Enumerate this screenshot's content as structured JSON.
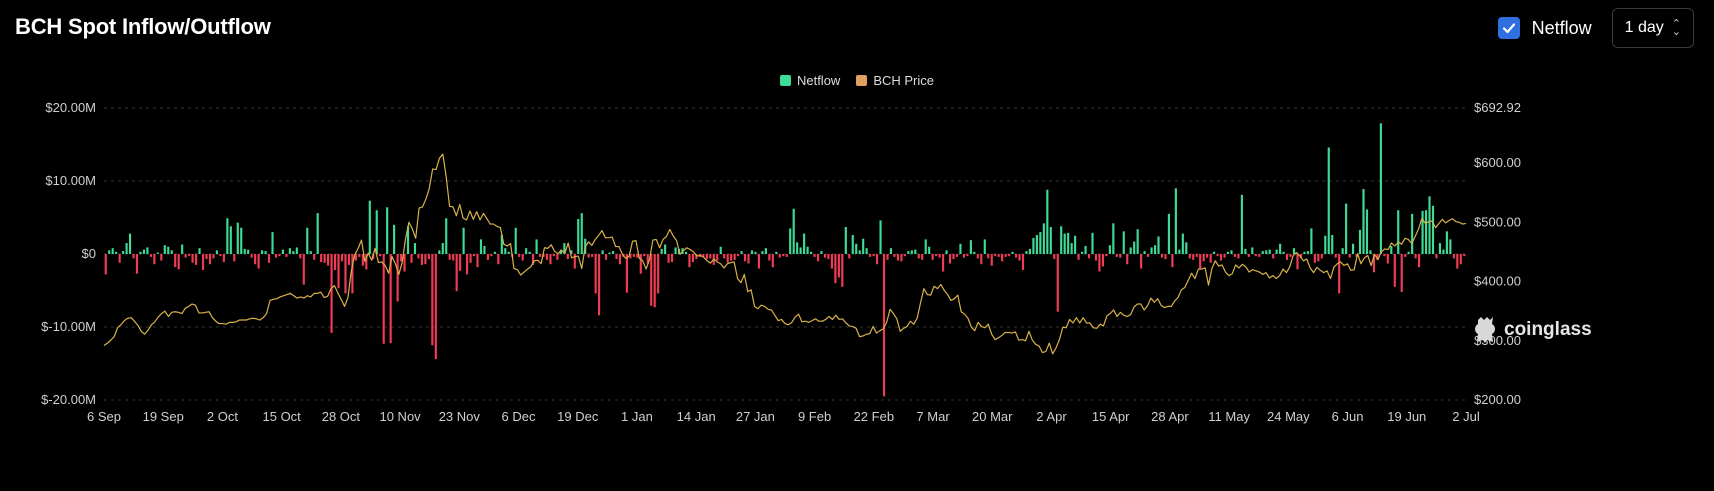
{
  "header": {
    "title": "BCH Spot Inflow/Outflow",
    "netflow_toggle_label": "Netflow",
    "netflow_checked": true,
    "interval_select": "1 day"
  },
  "legend": [
    {
      "name": "Netflow",
      "color": "#3ddc97"
    },
    {
      "name": "BCH Price",
      "color": "#e0a060"
    }
  ],
  "watermark": "coinglass",
  "colors": {
    "positive": "#3ddc97",
    "negative": "#f23c55",
    "price_line": "#d8b24a",
    "grid": "#333333"
  },
  "chart_data": {
    "type": "bar",
    "title": "BCH Spot Inflow/Outflow",
    "grid": true,
    "legend_position": "top-center",
    "x_ticks": [
      "6 Sep",
      "19 Sep",
      "2 Oct",
      "15 Oct",
      "28 Oct",
      "10 Nov",
      "23 Nov",
      "6 Dec",
      "19 Dec",
      "1 Jan",
      "14 Jan",
      "27 Jan",
      "9 Feb",
      "22 Feb",
      "7 Mar",
      "20 Mar",
      "2 Apr",
      "15 Apr",
      "28 Apr",
      "11 May",
      "24 May",
      "6 Jun",
      "19 Jun",
      "2 Jul"
    ],
    "left_axis": {
      "ylim": [
        -20,
        20
      ],
      "unit": "$M",
      "ticks": [
        "$20.00M",
        "$10.00M",
        "$0",
        "$-10.00M",
        "$-20.00M"
      ]
    },
    "right_axis": {
      "ylim": [
        200,
        692.92
      ],
      "ticks": [
        "$692.92",
        "$600.00",
        "$500.00",
        "$400.00",
        "$300.00",
        "$200.00"
      ]
    },
    "series": [
      {
        "name": "Netflow",
        "axis": "left",
        "unit": "$M",
        "values": [
          -2.8,
          0.5,
          0.8,
          0.3,
          -1.2,
          0.4,
          1.5,
          2.8,
          -0.6,
          -2.7,
          0.3,
          0.6,
          0.9,
          -0.4,
          -1.4,
          0.2,
          -0.9,
          1.2,
          1.0,
          0.5,
          -1.8,
          -2.1,
          1.3,
          -0.5,
          -0.3,
          -1.2,
          -1.5,
          0.8,
          -2.2,
          -0.7,
          -1.4,
          -0.6,
          0.5,
          -0.3,
          -1.1,
          4.9,
          3.8,
          -1.0,
          4.3,
          3.6,
          0.7,
          0.6,
          -0.5,
          -1.4,
          -2.0,
          0.5,
          0.4,
          -1.2,
          3.0,
          -0.5,
          -0.3,
          0.6,
          -0.4,
          0.8,
          0.4,
          0.9,
          -0.6,
          -4.2,
          3.6,
          0.4,
          -0.8,
          5.6,
          -1.1,
          -1.2,
          -1.6,
          -10.8,
          -2.2,
          -4.7,
          -1.0,
          -5.4,
          -1.5,
          -5.4,
          -0.9,
          -0.4,
          -1.6,
          -2.1,
          7.3,
          -0.7,
          6.0,
          -0.3,
          -12.3,
          6.4,
          -12.2,
          4.0,
          -6.5,
          -1.0,
          -2.4,
          3.8,
          -1.2,
          1.5,
          -0.6,
          -1.5,
          -1.4,
          -0.7,
          -12.5,
          -14.4,
          0.5,
          1.5,
          4.9,
          -0.8,
          -0.9,
          -5.1,
          -2.3,
          3.6,
          -2.8,
          -1.2,
          -0.3,
          -1.8,
          2.0,
          1.1,
          -0.8,
          -0.3,
          0.3,
          -1.4,
          2.6,
          0.8,
          0.3,
          -0.4,
          3.6,
          -0.4,
          -0.9,
          0.8,
          0.3,
          -1.5,
          2.0,
          -0.4,
          -0.4,
          -0.8,
          -1.4,
          -0.3,
          -0.8,
          0.6,
          1.5,
          -0.7,
          0.5,
          -2.0,
          4.8,
          5.6,
          2.1,
          -0.5,
          -0.4,
          -5.4,
          -8.4,
          0.5,
          -0.8,
          0.2,
          0.4,
          -0.7,
          -1.4,
          -0.4,
          -5.3,
          -0.6,
          -0.4,
          -0.5,
          -2.7,
          -0.3,
          -1.3,
          -7.1,
          -7.3,
          -5.4,
          0.7,
          1.3,
          -1.2,
          -1.1,
          0.9,
          0.7,
          0.8,
          0.3,
          -1.8,
          -1.1,
          -0.7,
          -0.4,
          -0.4,
          -0.7,
          -0.6,
          -1.5,
          -0.9,
          1.0,
          -0.6,
          -1.2,
          -0.9,
          -0.8,
          -0.3,
          0.4,
          -1.0,
          -1.3,
          0.5,
          0.3,
          -2.0,
          0.4,
          0.8,
          -0.9,
          -1.8,
          0.3,
          -0.5,
          -0.3,
          -0.4,
          3.5,
          6.2,
          1.6,
          0.9,
          2.8,
          1.0,
          0.3,
          -0.4,
          -1.0,
          0.4,
          -0.5,
          -0.7,
          -2.0,
          -4.0,
          -3.2,
          -4.5,
          3.7,
          -0.6,
          2.6,
          1.4,
          0.5,
          2.1,
          0.8,
          -0.4,
          -0.3,
          -1.4,
          4.6,
          -19.5,
          -0.8,
          0.8,
          -0.4,
          -0.9,
          -1.0,
          -0.3,
          0.4,
          0.5,
          0.6,
          -0.6,
          -0.8,
          2.0,
          1.0,
          -0.8,
          -0.3,
          -0.5,
          -2.4,
          0.5,
          -1.3,
          -0.7,
          -0.4,
          1.4,
          -0.5,
          -0.3,
          1.9,
          0.3,
          -0.6,
          -1.4,
          2.0,
          -0.6,
          -1.6,
          -0.3,
          -0.4,
          -1.0,
          -0.4,
          -0.3,
          0.3,
          -0.5,
          -0.9,
          -2.2,
          0.4,
          0.7,
          2.2,
          2.6,
          3.0,
          4.2,
          8.8,
          3.7,
          -0.7,
          -7.9,
          3.8,
          2.8,
          2.9,
          1.5,
          2.5,
          -0.8,
          0.3,
          1.1,
          -0.6,
          2.9,
          -0.9,
          -2.4,
          -1.7,
          -0.3,
          1.2,
          4.2,
          -0.4,
          -0.5,
          3.1,
          -1.4,
          0.9,
          1.7,
          3.4,
          -2.0,
          0.4,
          -0.4,
          0.9,
          1.2,
          2.4,
          -0.5,
          -0.7,
          5.5,
          -1.8,
          9.0,
          0.6,
          2.8,
          1.6,
          -0.6,
          -0.8,
          -0.4,
          -2.0,
          -1.0,
          -0.5,
          -1.2,
          0.3,
          -0.3,
          -0.9,
          -0.5,
          0.3,
          0.5,
          -0.4,
          -0.6,
          8.1,
          0.7,
          -0.4,
          0.9,
          -0.3,
          -0.4,
          0.4,
          0.5,
          0.6,
          -0.6,
          0.6,
          1.4,
          0.3,
          -0.8,
          -0.4,
          0.8,
          -2.1,
          -0.6,
          0.3,
          0.4,
          3.5,
          -1.2,
          -1.0,
          -0.6,
          2.5,
          14.6,
          2.6,
          -0.5,
          -5.4,
          0.8,
          6.9,
          -0.5,
          1.4,
          -0.4,
          3.3,
          8.9,
          6.1,
          0.5,
          -2.5,
          -0.8,
          17.9,
          -0.3,
          -1.3,
          1.1,
          -4.5,
          6.0,
          -5.2,
          -0.4,
          0.3,
          5.5,
          -0.6,
          -1.8,
          5.9,
          6.0,
          7.9,
          6.6,
          -0.6,
          1.5,
          0.6,
          3.1,
          2.0,
          -0.6,
          -2.0,
          -1.4,
          -0.3
        ]
      },
      {
        "name": "BCH Price",
        "axis": "right",
        "unit": "$",
        "values": [
          292,
          296,
          301,
          307,
          322,
          327,
          334,
          338,
          339,
          333,
          326,
          316,
          311,
          318,
          327,
          332,
          340,
          346,
          350,
          341,
          348,
          349,
          348,
          346,
          355,
          358,
          362,
          360,
          347,
          347,
          348,
          349,
          339,
          333,
          329,
          329,
          328,
          331,
          331,
          332,
          335,
          335,
          335,
          337,
          338,
          337,
          335,
          339,
          346,
          368,
          370,
          371,
          374,
          376,
          378,
          380,
          376,
          372,
          374,
          372,
          376,
          374,
          380,
          380,
          382,
          373,
          375,
          388,
          393,
          381,
          370,
          358,
          373,
          418,
          445,
          456,
          470,
          434,
          448,
          436,
          456,
          432,
          433,
          427,
          414,
          442,
          430,
          412,
          432,
          472,
          500,
          489,
          473,
          524,
          526,
          539,
          557,
          590,
          589,
          608,
          615,
          577,
          527,
          526,
          511,
          530,
          507,
          504,
          519,
          505,
          518,
          504,
          515,
          506,
          497,
          497,
          493,
          491,
          463,
          460,
          464,
          422,
          420,
          411,
          416,
          421,
          425,
          435,
          436,
          430,
          457,
          456,
          462,
          451,
          447,
          453,
          447,
          465,
          440,
          442,
          443,
          422,
          458,
          467,
          461,
          471,
          478,
          486,
          474,
          474,
          475,
          459,
          459,
          446,
          439,
          443,
          468,
          469,
          439,
          435,
          421,
          437,
          470,
          471,
          457,
          471,
          476,
          488,
          477,
          469,
          446,
          452,
          457,
          454,
          450,
          443,
          444,
          441,
          435,
          431,
          438,
          433,
          430,
          423,
          430,
          432,
          433,
          405,
          398,
          412,
          383,
          386,
          358,
          354,
          360,
          358,
          353,
          352,
          343,
          334,
          336,
          329,
          327,
          331,
          340,
          345,
          332,
          333,
          331,
          334,
          337,
          333,
          333,
          336,
          341,
          336,
          343,
          336,
          337,
          330,
          325,
          324,
          321,
          307,
          308,
          311,
          312,
          324,
          313,
          317,
          320,
          331,
          353,
          346,
          337,
          316,
          321,
          324,
          333,
          328,
          338,
          364,
          388,
          378,
          377,
          392,
          388,
          395,
          385,
          378,
          368,
          371,
          377,
          349,
          345,
          338,
          323,
          317,
          331,
          324,
          322,
          328,
          311,
          302,
          305,
          309,
          314,
          314,
          313,
          315,
          301,
          302,
          300,
          316,
          301,
          294,
          291,
          280,
          282,
          296,
          278,
          288,
          302,
          323,
          322,
          336,
          330,
          339,
          330,
          339,
          330,
          330,
          322,
          321,
          328,
          325,
          342,
          346,
          352,
          341,
          348,
          343,
          341,
          344,
          357,
          362,
          362,
          352,
          359,
          372,
          365,
          371,
          360,
          356,
          358,
          358,
          367,
          373,
          386,
          390,
          402,
          414,
          405,
          421,
          421,
          423,
          394,
          422,
          435,
          426,
          428,
          416,
          410,
          413,
          428,
          423,
          429,
          425,
          416,
          420,
          418,
          416,
          412,
          415,
          406,
          410,
          405,
          410,
          421,
          415,
          425,
          444,
          449,
          443,
          435,
          438,
          423,
          415,
          424,
          419,
          415,
          418,
          405,
          424,
          430,
          433,
          427,
          430,
          419,
          420,
          447,
          430,
          440,
          444,
          427,
          446,
          437,
          450,
          455,
          454,
          465,
          460,
          467,
          463,
          473,
          471,
          464,
          476,
          489,
          507,
          498,
          501,
          502,
          491,
          498,
          505,
          499,
          503,
          506,
          501,
          500,
          497,
          498
        ]
      }
    ]
  }
}
